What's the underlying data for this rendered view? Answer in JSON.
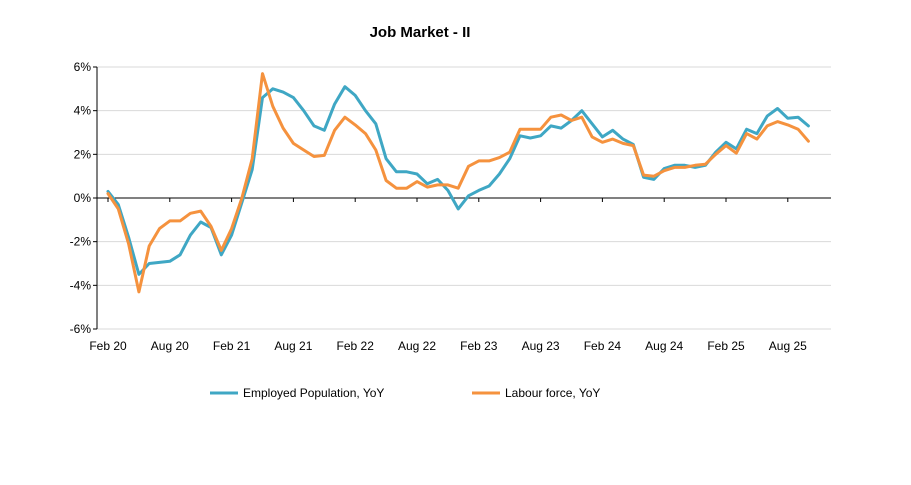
{
  "chart_data": {
    "type": "line",
    "title": "Job Market - II",
    "xlabel": "",
    "ylabel": "",
    "ylim": [
      -6,
      6
    ],
    "yticks": [
      -6,
      -4,
      -2,
      0,
      2,
      4,
      6
    ],
    "ytick_labels": [
      "-6%",
      "-4%",
      "-2%",
      "0%",
      "2%",
      "4%",
      "6%"
    ],
    "xticks": [
      "Feb 20",
      "Aug 20",
      "Feb 21",
      "Aug 21",
      "Feb 22",
      "Aug 22",
      "Feb 23",
      "Aug 23",
      "Feb 24",
      "Aug 24",
      "Feb 25",
      "Aug 25"
    ],
    "x_start": "Feb 20",
    "x_end": "Oct 25",
    "grid": true,
    "legend_position": "bottom",
    "series": [
      {
        "name": "Employed Population, YoY",
        "color": "#3FA7C4",
        "values": [
          0.3,
          -0.3,
          -1.8,
          -3.5,
          -3.0,
          -2.95,
          -2.9,
          -2.6,
          -1.7,
          -1.1,
          -1.35,
          -2.6,
          -1.7,
          -0.2,
          1.3,
          4.6,
          5.0,
          4.85,
          4.6,
          4.0,
          3.3,
          3.1,
          4.3,
          5.1,
          4.7,
          4.0,
          3.4,
          1.8,
          1.2,
          1.2,
          1.1,
          0.65,
          0.85,
          0.35,
          -0.5,
          0.1,
          0.35,
          0.55,
          1.1,
          1.8,
          2.85,
          2.75,
          2.85,
          3.3,
          3.2,
          3.55,
          4.0,
          3.4,
          2.8,
          3.1,
          2.7,
          2.45,
          0.95,
          0.85,
          1.35,
          1.5,
          1.5,
          1.4,
          1.5,
          2.1,
          2.55,
          2.25,
          3.15,
          2.95,
          3.75,
          4.1,
          3.65,
          3.7,
          3.3
        ]
      },
      {
        "name": "Labour force, YoY",
        "color": "#F5923E",
        "values": [
          0.2,
          -0.5,
          -2.1,
          -4.3,
          -2.2,
          -1.4,
          -1.05,
          -1.05,
          -0.7,
          -0.6,
          -1.3,
          -2.4,
          -1.4,
          0.0,
          1.8,
          5.7,
          4.2,
          3.2,
          2.5,
          2.2,
          1.9,
          1.95,
          3.1,
          3.7,
          3.35,
          2.95,
          2.2,
          0.8,
          0.45,
          0.45,
          0.75,
          0.5,
          0.6,
          0.6,
          0.45,
          1.45,
          1.7,
          1.7,
          1.85,
          2.1,
          3.15,
          3.15,
          3.15,
          3.7,
          3.8,
          3.55,
          3.7,
          2.8,
          2.55,
          2.7,
          2.5,
          2.4,
          1.05,
          1.0,
          1.25,
          1.4,
          1.4,
          1.5,
          1.55,
          2.0,
          2.4,
          2.05,
          2.95,
          2.7,
          3.3,
          3.5,
          3.35,
          3.15,
          2.6
        ]
      }
    ]
  }
}
